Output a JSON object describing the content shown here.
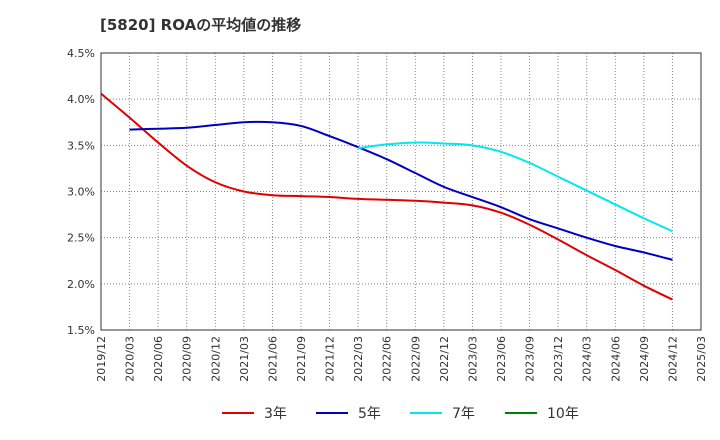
{
  "chart_data": {
    "type": "line",
    "title": "[5820]  ROAの平均値の推移",
    "xlabel": "",
    "ylabel": "",
    "ylim": [
      1.5,
      4.5
    ],
    "y_ticks": [
      "1.5%",
      "2.0%",
      "2.5%",
      "3.0%",
      "3.5%",
      "4.0%",
      "4.5%"
    ],
    "x_ticks": [
      "2019/12",
      "2020/03",
      "2020/06",
      "2020/09",
      "2020/12",
      "2021/03",
      "2021/06",
      "2021/09",
      "2021/12",
      "2022/03",
      "2022/06",
      "2022/09",
      "2022/12",
      "2023/03",
      "2023/06",
      "2023/09",
      "2023/12",
      "2024/03",
      "2024/06",
      "2024/09",
      "2024/12",
      "2025/03"
    ],
    "grid": true,
    "legend_position": "bottom",
    "series": [
      {
        "name": "3年",
        "color": "#e00000",
        "x": [
          "2019/12",
          "2020/03",
          "2020/06",
          "2020/09",
          "2020/12",
          "2021/03",
          "2021/06",
          "2021/09",
          "2021/12",
          "2022/03",
          "2022/06",
          "2022/09",
          "2022/12",
          "2023/03",
          "2023/06",
          "2023/09",
          "2023/12",
          "2024/03",
          "2024/06",
          "2024/09",
          "2024/12"
        ],
        "values": [
          4.06,
          3.8,
          3.53,
          3.28,
          3.1,
          3.0,
          2.96,
          2.95,
          2.94,
          2.92,
          2.91,
          2.9,
          2.88,
          2.85,
          2.77,
          2.64,
          2.48,
          2.31,
          2.15,
          1.98,
          1.83
        ]
      },
      {
        "name": "5年",
        "color": "#0000c0",
        "x": [
          "2020/03",
          "2020/06",
          "2020/09",
          "2020/12",
          "2021/03",
          "2021/06",
          "2021/09",
          "2021/12",
          "2022/03",
          "2022/06",
          "2022/09",
          "2022/12",
          "2023/03",
          "2023/06",
          "2023/09",
          "2023/12",
          "2024/03",
          "2024/06",
          "2024/09",
          "2024/12"
        ],
        "values": [
          3.67,
          3.68,
          3.69,
          3.72,
          3.75,
          3.75,
          3.71,
          3.6,
          3.48,
          3.35,
          3.2,
          3.05,
          2.94,
          2.83,
          2.7,
          2.6,
          2.5,
          2.41,
          2.34,
          2.26
        ]
      },
      {
        "name": "7年",
        "color": "#00e8f0",
        "x": [
          "2022/03",
          "2022/06",
          "2022/09",
          "2022/12",
          "2023/03",
          "2023/06",
          "2023/09",
          "2023/12",
          "2024/03",
          "2024/06",
          "2024/09",
          "2024/12"
        ],
        "values": [
          3.47,
          3.51,
          3.53,
          3.52,
          3.5,
          3.43,
          3.31,
          3.16,
          3.01,
          2.86,
          2.71,
          2.57
        ]
      },
      {
        "name": "10年",
        "color": "#008000",
        "x": [],
        "values": []
      }
    ]
  }
}
